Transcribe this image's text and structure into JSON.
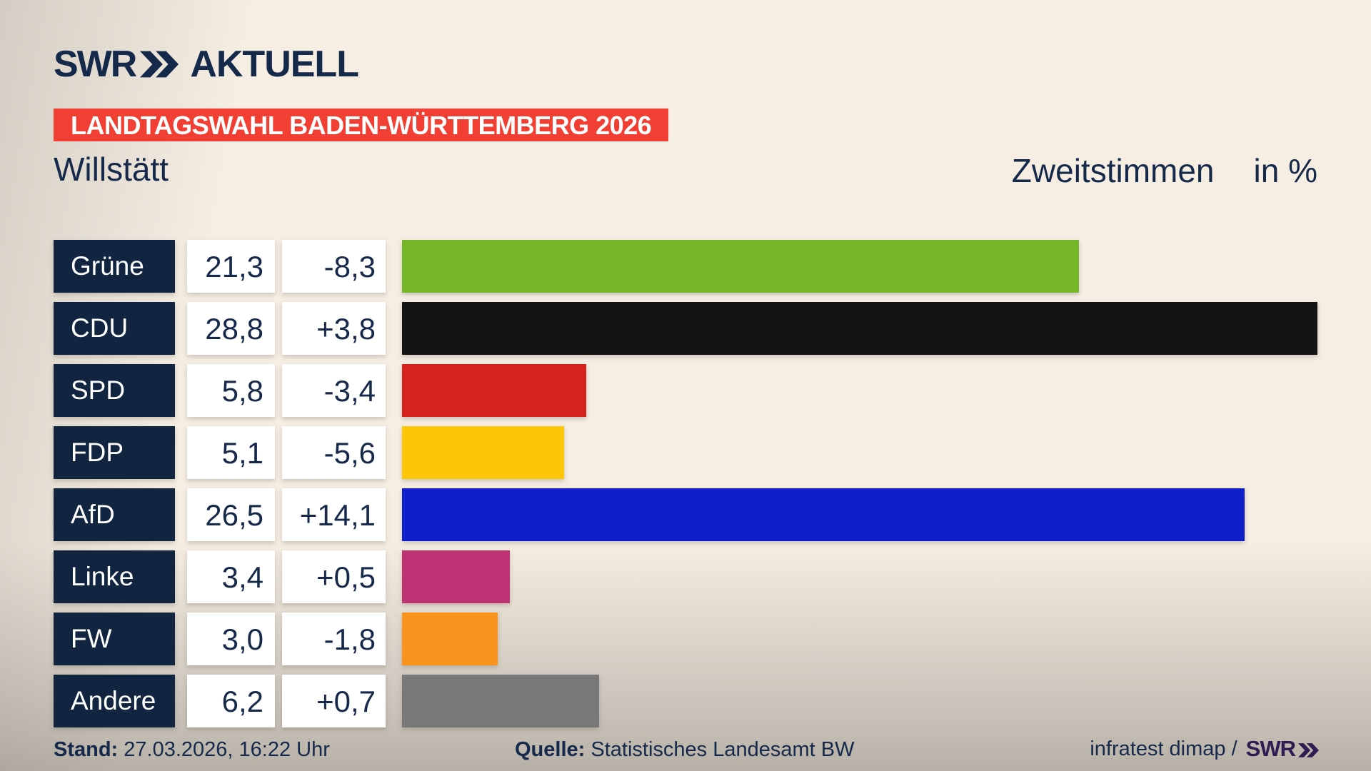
{
  "header": {
    "logo_swr": "SWR",
    "logo_aktuell": "AKTUELL",
    "banner": "LANDTAGSWAHL BADEN-WÜRTTEMBERG 2026",
    "municipality": "Willstätt",
    "chart_title": "Zweitstimmen",
    "unit_label": "in %"
  },
  "colors": {
    "navy": "#112440",
    "text_navy": "#16294a",
    "banner_red": "#f23f33",
    "background_cream": "#f6eee3",
    "background_gray": "#cbc8c2",
    "footer_swr_purple": "#2e1c52"
  },
  "chart_data": {
    "type": "bar",
    "orientation": "horizontal",
    "title": "Zweitstimmen in %",
    "subtitle": "Willstätt",
    "context": "Landtagswahl Baden-Württemberg 2026",
    "categories": [
      "Grüne",
      "CDU",
      "SPD",
      "FDP",
      "AfD",
      "Linke",
      "FW",
      "Andere"
    ],
    "series": [
      {
        "name": "Zweitstimmen (%)",
        "values": [
          21.3,
          28.8,
          5.8,
          5.1,
          26.5,
          3.4,
          3.0,
          6.2
        ]
      },
      {
        "name": "Veränderung (Prozentpunkte)",
        "values": [
          -8.3,
          3.8,
          -3.4,
          -5.6,
          14.1,
          0.5,
          -1.8,
          0.7
        ]
      }
    ],
    "bar_colors": [
      "#76b72a",
      "#141414",
      "#d6211e",
      "#fdc609",
      "#0f1fc9",
      "#bd3374",
      "#f8941e",
      "#787878"
    ],
    "xlim": [
      0,
      28.8
    ],
    "grid": false,
    "legend": false,
    "value_labels_shown": true
  },
  "rows": [
    {
      "party": "Grüne",
      "value": "21,3",
      "diff": "-8,3",
      "value_num": 21.3,
      "color": "#76b72a"
    },
    {
      "party": "CDU",
      "value": "28,8",
      "diff": "+3,8",
      "value_num": 28.8,
      "color": "#141414"
    },
    {
      "party": "SPD",
      "value": "5,8",
      "diff": "-3,4",
      "value_num": 5.8,
      "color": "#d6211e"
    },
    {
      "party": "FDP",
      "value": "5,1",
      "diff": "-5,6",
      "value_num": 5.1,
      "color": "#fdc609"
    },
    {
      "party": "AfD",
      "value": "26,5",
      "diff": "+14,1",
      "value_num": 26.5,
      "color": "#0f1fc9"
    },
    {
      "party": "Linke",
      "value": "3,4",
      "diff": "+0,5",
      "value_num": 3.4,
      "color": "#bd3374"
    },
    {
      "party": "FW",
      "value": "3,0",
      "diff": "-1,8",
      "value_num": 3.0,
      "color": "#f8941e"
    },
    {
      "party": "Andere",
      "value": "6,2",
      "diff": "+0,7",
      "value_num": 6.2,
      "color": "#787878"
    }
  ],
  "footer": {
    "stand_label": "Stand:",
    "stand_value": "27.03.2026, 16:22 Uhr",
    "quelle_label": "Quelle:",
    "quelle_value": "Statistisches Landesamt BW",
    "credit_text": "infratest dimap /",
    "credit_logo": "SWR"
  }
}
